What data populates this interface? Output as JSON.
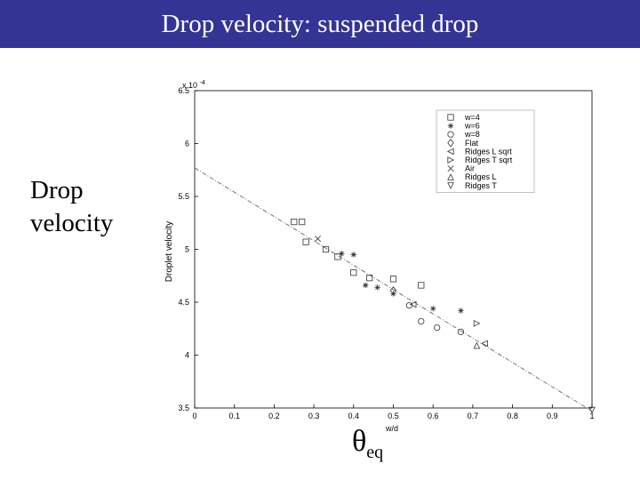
{
  "slide": {
    "title": "Drop velocity: suspended drop",
    "side_label": "Drop velocity",
    "theta_symbol": "θ",
    "theta_subscript": "eq"
  },
  "chart_data": {
    "type": "scatter",
    "title": "",
    "xlabel": "w/d",
    "ylabel": "Droplet velocity",
    "y_multiplier_label": "x 10",
    "y_multiplier_exponent": "-4",
    "xlim": [
      0,
      1
    ],
    "ylim": [
      3.5,
      6.5
    ],
    "x_ticks": [
      "0",
      "0.1",
      "0.2",
      "0.3",
      "0.4",
      "0.5",
      "0.6",
      "0.7",
      "0.8",
      "0.9",
      "1"
    ],
    "y_ticks": [
      "3.5",
      "4",
      "4.5",
      "5",
      "5.5",
      "6",
      "6.5"
    ],
    "grid": false,
    "legend_position": "top-right",
    "series": [
      {
        "name": "w=4",
        "marker": "square",
        "points": [
          [
            0.25,
            5.26
          ],
          [
            0.27,
            5.26
          ],
          [
            0.28,
            5.07
          ],
          [
            0.33,
            5.0
          ],
          [
            0.36,
            4.93
          ],
          [
            0.4,
            4.78
          ],
          [
            0.44,
            4.73
          ],
          [
            0.5,
            4.72
          ],
          [
            0.57,
            4.66
          ]
        ]
      },
      {
        "name": "w=6",
        "marker": "star",
        "points": [
          [
            0.37,
            4.96
          ],
          [
            0.4,
            4.95
          ],
          [
            0.43,
            4.66
          ],
          [
            0.46,
            4.64
          ],
          [
            0.5,
            4.58
          ],
          [
            0.6,
            4.44
          ],
          [
            0.67,
            4.42
          ]
        ]
      },
      {
        "name": "w=8",
        "marker": "circle",
        "points": [
          [
            0.54,
            4.47
          ],
          [
            0.57,
            4.32
          ],
          [
            0.61,
            4.26
          ],
          [
            0.67,
            4.22
          ]
        ]
      },
      {
        "name": "Flat",
        "marker": "diamond",
        "points": [
          [
            0.5,
            4.61
          ]
        ]
      },
      {
        "name": "Ridges L sqrt",
        "marker": "triangle-left",
        "points": [
          [
            0.55,
            4.48
          ],
          [
            0.73,
            4.11
          ]
        ]
      },
      {
        "name": "Ridges T sqrt",
        "marker": "triangle-right",
        "points": [
          [
            0.71,
            4.3
          ]
        ]
      },
      {
        "name": "Air",
        "marker": "x",
        "points": [
          [
            0.31,
            5.1
          ]
        ]
      },
      {
        "name": "Ridges L",
        "marker": "triangle-up",
        "points": [
          [
            0.71,
            4.09
          ]
        ]
      },
      {
        "name": "Ridges T",
        "marker": "triangle-down",
        "points": [
          [
            1.0,
            3.48
          ]
        ]
      }
    ],
    "fit_line": {
      "style": "dash-dot",
      "points": [
        [
          0,
          5.77
        ],
        [
          1,
          3.47
        ]
      ]
    }
  }
}
